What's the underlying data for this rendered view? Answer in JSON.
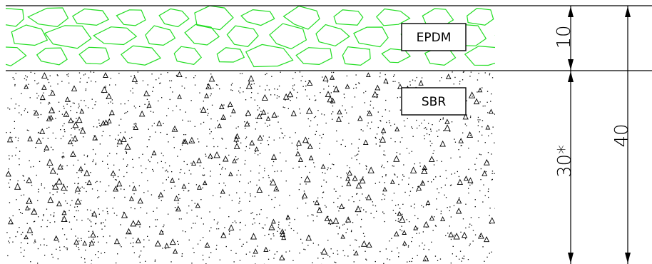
{
  "layers": {
    "top": {
      "label": "EPDM",
      "color": "#22dd22"
    },
    "bottom": {
      "label": "SBR",
      "dot_color": "#000000"
    }
  },
  "dimensions": {
    "top_thickness": "10",
    "bottom_thickness": "30*",
    "total_thickness": "40"
  }
}
